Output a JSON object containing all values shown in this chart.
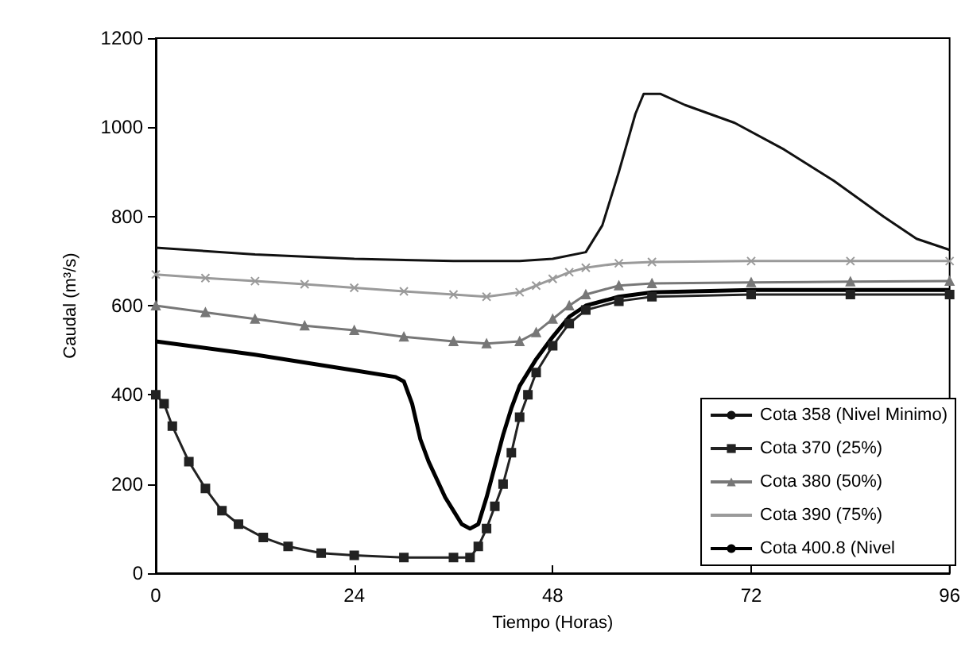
{
  "chart_data": {
    "type": "line",
    "xlabel": "Tiempo (Horas)",
    "ylabel": "Caudal (m³/s)",
    "xlim": [
      0,
      96
    ],
    "xticks": [
      0,
      24,
      48,
      72,
      96
    ],
    "ylim": [
      0,
      1200
    ],
    "yticks": [
      0,
      200,
      400,
      600,
      800,
      1000,
      1200
    ],
    "grid": false,
    "legend": "bottom right",
    "series": [
      {
        "name": "Cota 358 (Nivel Minimo)",
        "color": "#111111",
        "marker": "none",
        "x": [
          0,
          12,
          24,
          36,
          44,
          48,
          52,
          54,
          56,
          58,
          59,
          61,
          64,
          70,
          76,
          82,
          88,
          92,
          96
        ],
        "values": [
          730,
          715,
          705,
          700,
          700,
          705,
          720,
          780,
          900,
          1030,
          1075,
          1075,
          1050,
          1010,
          950,
          880,
          800,
          750,
          725
        ]
      },
      {
        "name": "Cota 370 (25%)",
        "color": "#222222",
        "marker": "square",
        "x": [
          0,
          1,
          2,
          4,
          6,
          8,
          10,
          13,
          16,
          20,
          24,
          30,
          36,
          38,
          39,
          40,
          41,
          42,
          43,
          44,
          45,
          46,
          48,
          50,
          52,
          56,
          60,
          72,
          84,
          96
        ],
        "values": [
          400,
          380,
          330,
          250,
          190,
          140,
          110,
          80,
          60,
          45,
          40,
          35,
          35,
          35,
          60,
          100,
          150,
          200,
          270,
          350,
          400,
          450,
          510,
          560,
          590,
          610,
          620,
          625,
          625,
          625
        ]
      },
      {
        "name": "Cota 380 (50%)",
        "color": "#777777",
        "marker": "triangle",
        "x": [
          0,
          6,
          12,
          18,
          24,
          30,
          36,
          40,
          44,
          46,
          48,
          50,
          52,
          56,
          60,
          72,
          84,
          96
        ],
        "values": [
          600,
          585,
          570,
          555,
          545,
          530,
          520,
          515,
          520,
          540,
          570,
          600,
          625,
          645,
          650,
          652,
          654,
          655
        ]
      },
      {
        "name": "Cota 390 (75%)",
        "color": "#9a9a9a",
        "marker": "cross",
        "x": [
          0,
          6,
          12,
          18,
          24,
          30,
          36,
          40,
          44,
          46,
          48,
          50,
          52,
          56,
          60,
          72,
          84,
          96
        ],
        "values": [
          670,
          662,
          655,
          648,
          640,
          632,
          625,
          620,
          630,
          645,
          660,
          675,
          685,
          695,
          698,
          700,
          700,
          700
        ]
      },
      {
        "name": "Cota 400.8 (Nivel",
        "color": "#000000",
        "marker": "none",
        "x": [
          0,
          12,
          24,
          29,
          30,
          31,
          32,
          33,
          34,
          35,
          36,
          37,
          38,
          39,
          40,
          41,
          42,
          43,
          44,
          46,
          48,
          50,
          52,
          56,
          60,
          72,
          84,
          96
        ],
        "values": [
          520,
          490,
          455,
          440,
          430,
          380,
          300,
          250,
          210,
          170,
          140,
          110,
          100,
          110,
          170,
          240,
          310,
          370,
          420,
          480,
          530,
          575,
          600,
          620,
          630,
          635,
          635,
          635
        ]
      }
    ]
  }
}
